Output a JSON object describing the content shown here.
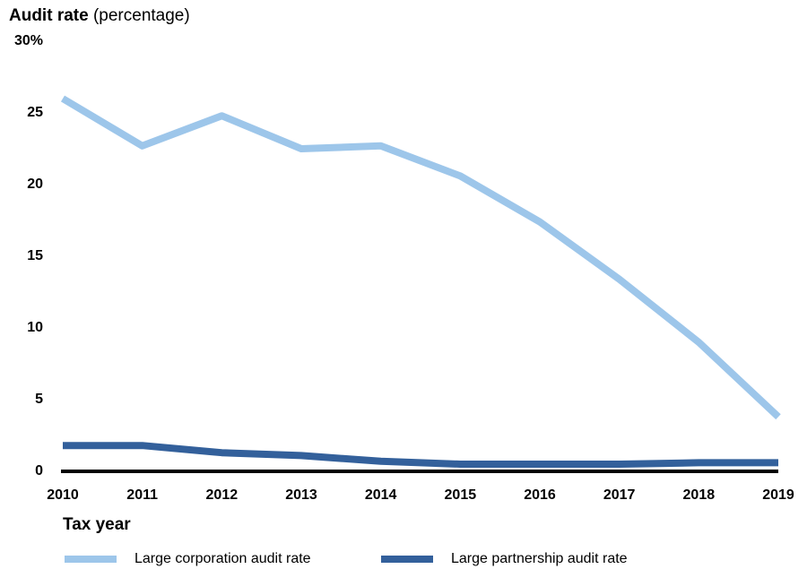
{
  "chart_data": {
    "type": "line",
    "title": "Audit rate",
    "subtitle": "(percentage)",
    "x_label": "Tax year",
    "categories": [
      "2010",
      "2011",
      "2012",
      "2013",
      "2014",
      "2015",
      "2016",
      "2017",
      "2018",
      "2019"
    ],
    "series": [
      {
        "name": "Large corporation audit rate",
        "color": "#9dc6ea",
        "values": [
          26.0,
          22.7,
          24.8,
          22.5,
          22.7,
          20.6,
          17.4,
          13.4,
          9.0,
          3.8
        ]
      },
      {
        "name": "Large partnership audit rate",
        "color": "#33609b",
        "values": [
          1.8,
          1.8,
          1.3,
          1.1,
          0.7,
          0.5,
          0.5,
          0.5,
          0.6,
          0.6
        ]
      }
    ],
    "ylim": [
      0,
      30
    ],
    "yticks": [
      0,
      5,
      10,
      15,
      20,
      25,
      {
        "value": 30,
        "label": "30%"
      }
    ],
    "grid": false
  }
}
